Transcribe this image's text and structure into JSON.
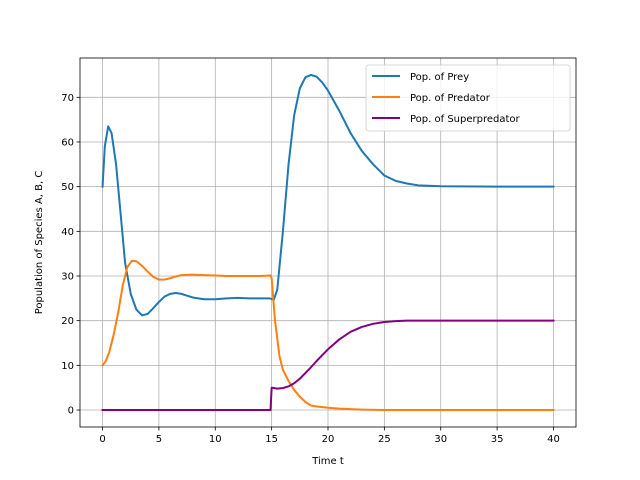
{
  "chart_data": {
    "type": "line",
    "title": "",
    "xlabel": "Time t",
    "ylabel": "Population of Species A,  B,  C",
    "xlim": [
      -2,
      42
    ],
    "ylim": [
      -3.8,
      78.8
    ],
    "xticks": [
      0,
      5,
      10,
      15,
      20,
      25,
      30,
      35,
      40
    ],
    "yticks": [
      0,
      10,
      20,
      30,
      40,
      50,
      60,
      70
    ],
    "grid": true,
    "legend_position": "upper-right",
    "series": [
      {
        "name": "Pop. of Prey",
        "color": "#1f77b4",
        "points": [
          [
            0,
            50
          ],
          [
            0.2,
            59
          ],
          [
            0.5,
            63.5
          ],
          [
            0.8,
            62
          ],
          [
            1.2,
            55
          ],
          [
            1.6,
            44
          ],
          [
            2,
            33
          ],
          [
            2.5,
            26
          ],
          [
            3,
            22.5
          ],
          [
            3.5,
            21.2
          ],
          [
            4,
            21.5
          ],
          [
            4.5,
            22.8
          ],
          [
            5,
            24.2
          ],
          [
            5.5,
            25.4
          ],
          [
            6,
            26
          ],
          [
            6.5,
            26.2
          ],
          [
            7,
            26
          ],
          [
            7.5,
            25.6
          ],
          [
            8,
            25.2
          ],
          [
            9,
            24.8
          ],
          [
            10,
            24.8
          ],
          [
            11,
            25
          ],
          [
            12,
            25.1
          ],
          [
            13,
            25
          ],
          [
            14,
            25
          ],
          [
            14.8,
            25
          ],
          [
            15.2,
            24.7
          ],
          [
            15.5,
            27
          ],
          [
            16,
            40
          ],
          [
            16.5,
            55
          ],
          [
            17,
            66
          ],
          [
            17.5,
            72
          ],
          [
            18,
            74.5
          ],
          [
            18.5,
            75
          ],
          [
            19,
            74.6
          ],
          [
            19.5,
            73.3
          ],
          [
            20,
            71.5
          ],
          [
            21,
            67
          ],
          [
            22,
            62
          ],
          [
            23,
            58
          ],
          [
            24,
            55
          ],
          [
            25,
            52.5
          ],
          [
            26,
            51.3
          ],
          [
            27,
            50.7
          ],
          [
            28,
            50.3
          ],
          [
            30,
            50.1
          ],
          [
            35,
            50
          ],
          [
            40,
            50
          ]
        ]
      },
      {
        "name": "Pop. of Predator",
        "color": "#ff7f0e",
        "points": [
          [
            0,
            10
          ],
          [
            0.3,
            11
          ],
          [
            0.6,
            13
          ],
          [
            1,
            17
          ],
          [
            1.4,
            22
          ],
          [
            1.8,
            28
          ],
          [
            2.2,
            32
          ],
          [
            2.6,
            33.4
          ],
          [
            3,
            33.3
          ],
          [
            3.5,
            32.3
          ],
          [
            4,
            31
          ],
          [
            4.5,
            29.8
          ],
          [
            5,
            29.2
          ],
          [
            5.5,
            29.2
          ],
          [
            6,
            29.5
          ],
          [
            6.5,
            29.9
          ],
          [
            7,
            30.2
          ],
          [
            8,
            30.3
          ],
          [
            9,
            30.2
          ],
          [
            10,
            30.1
          ],
          [
            11,
            30
          ],
          [
            12,
            30
          ],
          [
            13,
            30
          ],
          [
            14,
            30
          ],
          [
            14.9,
            30.1
          ],
          [
            15,
            29.5
          ],
          [
            15.3,
            20
          ],
          [
            15.7,
            12
          ],
          [
            16,
            9
          ],
          [
            16.5,
            6.5
          ],
          [
            17,
            4.5
          ],
          [
            17.5,
            3
          ],
          [
            18,
            1.8
          ],
          [
            18.5,
            1
          ],
          [
            19,
            0.8
          ],
          [
            20,
            0.5
          ],
          [
            21,
            0.3
          ],
          [
            22,
            0.2
          ],
          [
            23,
            0.1
          ],
          [
            25,
            0
          ],
          [
            30,
            0
          ],
          [
            35,
            0
          ],
          [
            40,
            0
          ]
        ]
      },
      {
        "name": "Pop. of Superpredator",
        "color": "#800080",
        "points": [
          [
            0,
            0
          ],
          [
            5,
            0
          ],
          [
            10,
            0
          ],
          [
            14.9,
            0
          ],
          [
            15,
            5
          ],
          [
            15.5,
            4.8
          ],
          [
            16,
            4.9
          ],
          [
            16.5,
            5.3
          ],
          [
            17,
            6
          ],
          [
            17.5,
            7
          ],
          [
            18,
            8.3
          ],
          [
            18.5,
            9.6
          ],
          [
            19,
            11
          ],
          [
            19.5,
            12.3
          ],
          [
            20,
            13.6
          ],
          [
            21,
            15.8
          ],
          [
            22,
            17.5
          ],
          [
            23,
            18.6
          ],
          [
            24,
            19.3
          ],
          [
            25,
            19.7
          ],
          [
            26,
            19.9
          ],
          [
            27,
            20
          ],
          [
            30,
            20
          ],
          [
            35,
            20
          ],
          [
            40,
            20
          ]
        ]
      }
    ]
  }
}
